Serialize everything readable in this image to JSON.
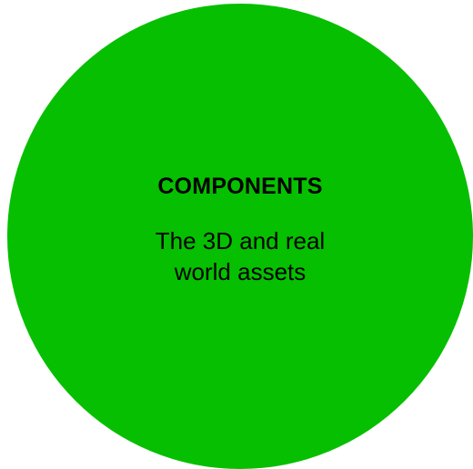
{
  "node": {
    "title": "COMPONENTS",
    "description": "The 3D and real world assets",
    "fill_color": "#06bf00",
    "text_color": "#000000"
  }
}
